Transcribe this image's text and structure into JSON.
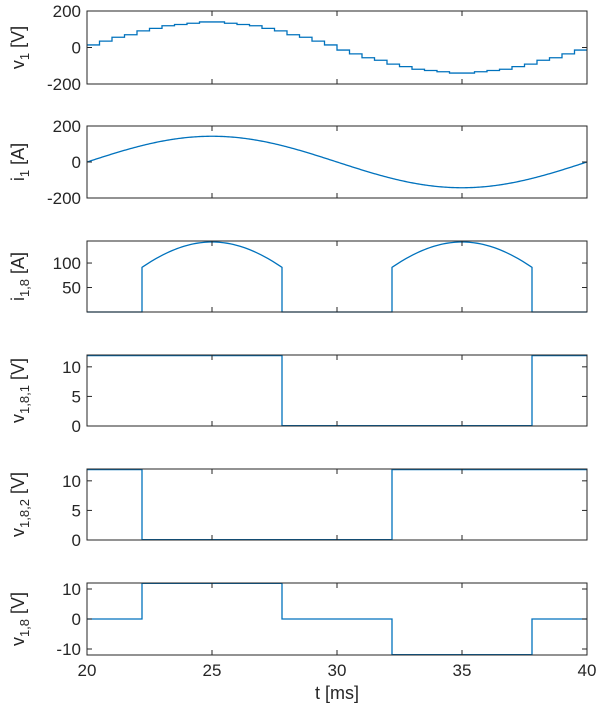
{
  "chart_data": {
    "type": "line",
    "x_axis": {
      "label": "t [ms]",
      "range": [
        20,
        40
      ],
      "ticks": [
        20,
        25,
        30,
        35,
        40
      ],
      "tick_labels": [
        "20",
        "25",
        "30",
        "35",
        "40"
      ]
    },
    "line_color": "#0072BD",
    "axes_color": "#262626",
    "grid": false,
    "legend": "none",
    "panels": [
      {
        "ylabel": {
          "base": "v",
          "sub": "1",
          "unit": "[V]"
        },
        "ylim": [
          -200,
          200
        ],
        "yticks": [
          -200,
          0,
          200
        ],
        "ytick_labels": [
          "-200",
          "0",
          "200"
        ],
        "waveform": "staircase sine",
        "amplitude": 140,
        "period_ms": 20,
        "start_ms": 20,
        "step_count_per_period": 40,
        "series": [
          {
            "name": "v_1"
          }
        ]
      },
      {
        "ylabel": {
          "base": "i",
          "sub": "1",
          "unit": "[A]"
        },
        "ylim": [
          -200,
          200
        ],
        "yticks": [
          -200,
          0,
          200
        ],
        "ytick_labels": [
          "-200",
          "0",
          "200"
        ],
        "waveform": "sine",
        "amplitude": 143,
        "period_ms": 20,
        "start_ms": 20,
        "series": [
          {
            "name": "i_1"
          }
        ]
      },
      {
        "ylabel": {
          "base": "i",
          "sub": "1,8",
          "unit": "[A]"
        },
        "ylim": [
          0,
          145
        ],
        "yticks": [
          50,
          100
        ],
        "ytick_labels": [
          "50",
          "100"
        ],
        "waveform": "rectified sine segments",
        "amplitude": 143,
        "segments": [
          [
            22.2,
            27.8
          ],
          [
            32.2,
            37.8
          ]
        ],
        "series": [
          {
            "name": "i_1,8"
          }
        ]
      },
      {
        "ylabel": {
          "base": "v",
          "sub": "1,8,1",
          "unit": "[V]"
        },
        "ylim": [
          0,
          12
        ],
        "yticks": [
          0,
          5,
          10
        ],
        "ytick_labels": [
          "0",
          "5",
          "10"
        ],
        "waveform": "step",
        "points": [
          [
            20,
            11.9
          ],
          [
            27.8,
            11.9
          ],
          [
            27.8,
            0.05
          ],
          [
            37.8,
            0.05
          ],
          [
            37.8,
            11.9
          ],
          [
            40,
            11.9
          ]
        ],
        "series": [
          {
            "name": "v_1,8,1"
          }
        ]
      },
      {
        "ylabel": {
          "base": "v",
          "sub": "1,8,2",
          "unit": "[V]"
        },
        "ylim": [
          0,
          12
        ],
        "yticks": [
          0,
          5,
          10
        ],
        "ytick_labels": [
          "0",
          "5",
          "10"
        ],
        "waveform": "step",
        "points": [
          [
            20,
            11.9
          ],
          [
            22.2,
            11.9
          ],
          [
            22.2,
            0.05
          ],
          [
            32.2,
            0.05
          ],
          [
            32.2,
            11.9
          ],
          [
            40,
            11.9
          ]
        ],
        "series": [
          {
            "name": "v_1,8,2"
          }
        ]
      },
      {
        "ylabel": {
          "base": "v",
          "sub": "1,8",
          "unit": "[V]"
        },
        "ylim": [
          -12,
          12
        ],
        "yticks": [
          -10,
          0,
          10
        ],
        "ytick_labels": [
          "-10",
          "0",
          "10"
        ],
        "waveform": "step",
        "points": [
          [
            20,
            0
          ],
          [
            22.2,
            0
          ],
          [
            22.2,
            11.9
          ],
          [
            27.8,
            11.9
          ],
          [
            27.8,
            0
          ],
          [
            32.2,
            0
          ],
          [
            32.2,
            -11.9
          ],
          [
            37.8,
            -11.9
          ],
          [
            37.8,
            0
          ],
          [
            40,
            0
          ]
        ],
        "series": [
          {
            "name": "v_1,8"
          }
        ]
      }
    ]
  }
}
